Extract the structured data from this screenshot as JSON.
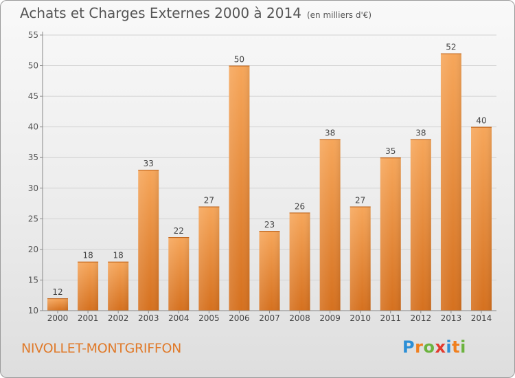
{
  "title": "Achats et Charges Externes 2000 à 2014",
  "unit": "(en milliers d'€)",
  "commune": "NIVOLLET-MONTGRIFFON",
  "logo": {
    "letters": [
      "P",
      "r",
      "o",
      "x",
      "i",
      "t",
      "i"
    ],
    "colors": [
      "#2c8fd6",
      "#f07f1e",
      "#6cb33f",
      "#e23a2e",
      "#2c8fd6",
      "#f07f1e",
      "#6cb33f"
    ]
  },
  "colors": {
    "bar_top": "#f6a65a",
    "bar_bottom": "#d5701e",
    "title_text": "#555555",
    "commune_text": "#e07a2a"
  },
  "chart_data": {
    "type": "bar",
    "categories": [
      "2000",
      "2001",
      "2002",
      "2003",
      "2004",
      "2005",
      "2006",
      "2007",
      "2008",
      "2009",
      "2010",
      "2011",
      "2012",
      "2013",
      "2014"
    ],
    "values": [
      12,
      18,
      18,
      33,
      22,
      27,
      50,
      23,
      26,
      38,
      27,
      35,
      38,
      52,
      40
    ],
    "title": "Achats et Charges Externes 2000 à 2014",
    "xlabel": "",
    "ylabel": "",
    "ylim": [
      10,
      55
    ],
    "yticks": [
      10,
      15,
      20,
      25,
      30,
      35,
      40,
      45,
      50,
      55
    ],
    "grid": true,
    "data_labels": true
  }
}
